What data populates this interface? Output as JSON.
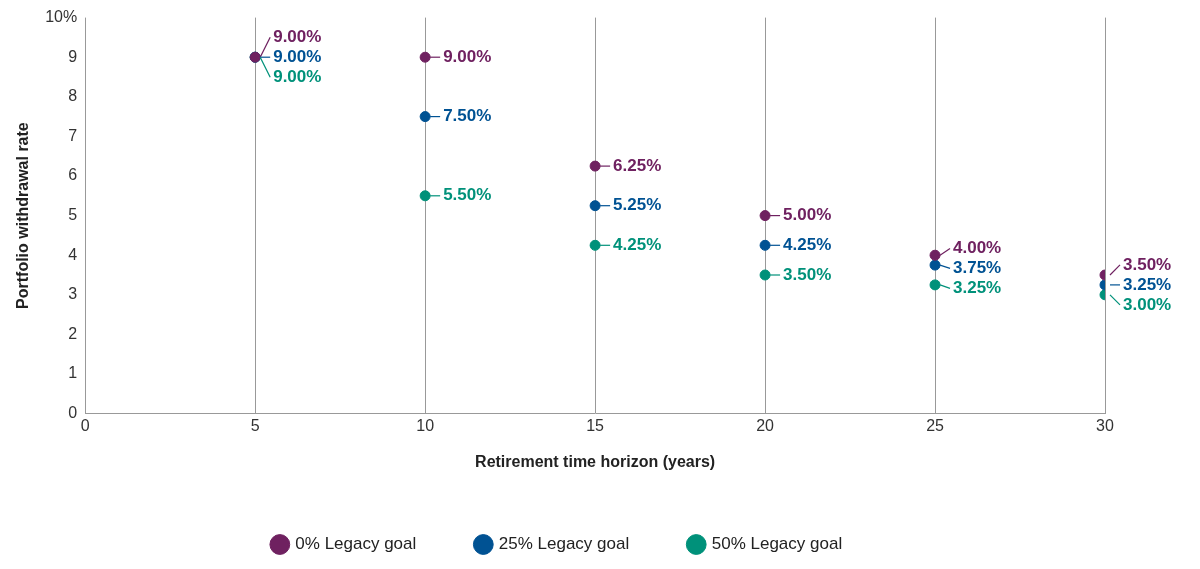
{
  "chart_data": {
    "type": "scatter",
    "x_label": "Retirement time horizon (years)",
    "y_label": "Portfolio withdrawal rate",
    "x": [
      5,
      10,
      15,
      20,
      25,
      30
    ],
    "series": [
      {
        "name": "0% Legacy goal",
        "color": "#6f2160",
        "marker": "circle",
        "values": [
          9,
          9,
          6.25,
          5,
          4,
          3.5
        ],
        "value_labels": [
          "9.00%",
          "9.00%",
          "6.25%",
          "5.00%",
          "4.00%",
          "3.50%"
        ]
      },
      {
        "name": "25% Legacy goal",
        "color": "#005293",
        "marker": "circle",
        "values": [
          9,
          7.5,
          5.25,
          4.25,
          3.75,
          3.25
        ],
        "value_labels": [
          "9.00%",
          "7.50%",
          "5.25%",
          "4.25%",
          "3.75%",
          "3.25%"
        ]
      },
      {
        "name": "50% Legacy goal",
        "color": "#00917a",
        "marker": "circle",
        "values": [
          9,
          5.5,
          4.25,
          3.5,
          3.25,
          3
        ],
        "value_labels": [
          "9.00%",
          "5.50%",
          "4.25%",
          "3.50%",
          "3.25%",
          "3.00%"
        ]
      }
    ],
    "xlim": [
      0,
      30
    ],
    "xticks": [
      0,
      5,
      10,
      15,
      20,
      25,
      30
    ],
    "ylim": [
      0,
      10
    ],
    "yticks": [
      0,
      1,
      2,
      3,
      4,
      5,
      6,
      7,
      8,
      9,
      {
        "value": 10,
        "label": "10%"
      }
    ],
    "grid": "x",
    "legend": "bottom",
    "data_labels": true
  }
}
